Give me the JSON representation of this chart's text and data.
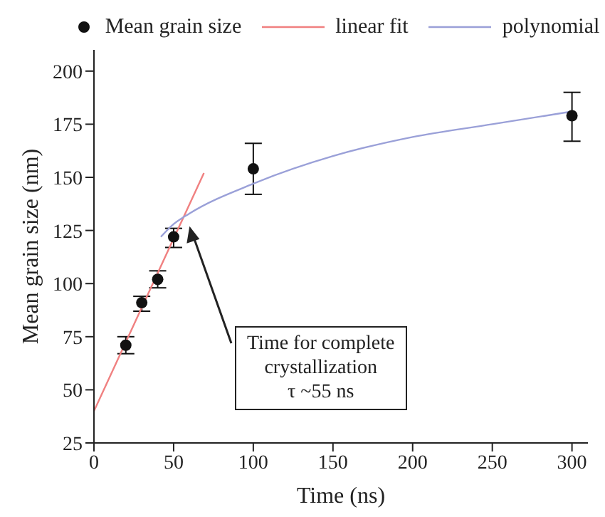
{
  "chart_data": {
    "type": "scatter",
    "xlabel": "Time (ns)",
    "ylabel": "Mean grain size (nm)",
    "x": [
      20,
      30,
      40,
      50,
      100,
      300
    ],
    "xlim": [
      0,
      310
    ],
    "xticks": [
      0,
      50,
      100,
      150,
      200,
      250,
      300
    ],
    "ylim": [
      25,
      210
    ],
    "yticks": [
      25,
      50,
      75,
      100,
      125,
      150,
      175,
      200
    ],
    "legend": "top",
    "series": [
      {
        "name": "Mean grain size",
        "color": "#111111",
        "marker": "circle",
        "values": [
          71,
          91,
          102,
          122,
          154,
          179
        ],
        "errors": [
          [
            67,
            75
          ],
          [
            87,
            94
          ],
          [
            98,
            106
          ],
          [
            117,
            126
          ],
          [
            142,
            166
          ],
          [
            167,
            190
          ]
        ]
      },
      {
        "name": "linear fit",
        "type": "line",
        "color": "#f08080",
        "x": [
          0,
          69
        ],
        "values": [
          40,
          152
        ]
      },
      {
        "name": "polynomial",
        "type": "line",
        "color": "#9aa0d8",
        "x": [
          42,
          50,
          60,
          100,
          150,
          200,
          250,
          300
        ],
        "values": [
          122,
          128,
          133,
          147,
          160,
          169,
          175,
          181
        ]
      }
    ],
    "annotations": [
      "Time for complete\ncrystallization\nτ ~55 ns"
    ]
  }
}
